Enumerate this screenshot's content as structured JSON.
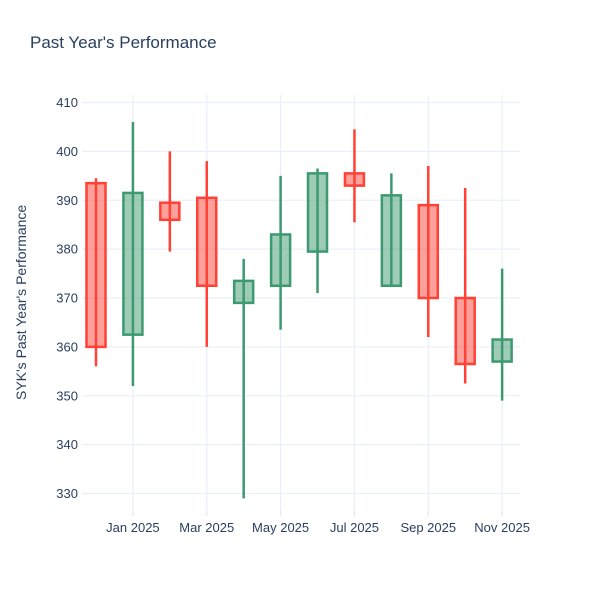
{
  "page": {
    "title": "Past Year's Performance"
  },
  "colors": {
    "background": "#ffffff",
    "text": "#2a3f5f",
    "grid": "#ebf0f8",
    "tick_mark": "#e3e9f3"
  },
  "chart_data": {
    "type": "candlestick",
    "title": "Past Year's Performance",
    "xlabel": "",
    "ylabel": "SYK's Past Year's Performance",
    "legend": false,
    "grid": true,
    "ylim": [
      325,
      413
    ],
    "y_ticks": [
      330,
      340,
      350,
      360,
      370,
      380,
      390,
      400,
      410
    ],
    "x_tick_labels": [
      "Jan 2025",
      "Mar 2025",
      "May 2025",
      "Jul 2025",
      "Sep 2025",
      "Nov 2025"
    ],
    "increasing": {
      "line_color": "#3d9970",
      "fill_color": "rgba(61,153,112,0.5)"
    },
    "decreasing": {
      "line_color": "#ff4136",
      "fill_color": "rgba(255,65,54,0.5)"
    },
    "candles": [
      {
        "month": "Dec 2024",
        "open": 393.5,
        "high": 394.5,
        "low": 356.0,
        "close": 360.0
      },
      {
        "month": "Jan 2025",
        "open": 362.5,
        "high": 406.0,
        "low": 352.0,
        "close": 391.5
      },
      {
        "month": "Feb 2025",
        "open": 389.5,
        "high": 400.0,
        "low": 379.5,
        "close": 386.0
      },
      {
        "month": "Mar 2025",
        "open": 390.5,
        "high": 398.0,
        "low": 360.0,
        "close": 372.5
      },
      {
        "month": "Apr 2025",
        "open": 369.0,
        "high": 378.0,
        "low": 329.0,
        "close": 373.5
      },
      {
        "month": "May 2025",
        "open": 372.5,
        "high": 395.0,
        "low": 363.5,
        "close": 383.0
      },
      {
        "month": "Jun 2025",
        "open": 379.5,
        "high": 396.5,
        "low": 371.0,
        "close": 395.5
      },
      {
        "month": "Jul 2025",
        "open": 395.5,
        "high": 404.5,
        "low": 385.5,
        "close": 393.0
      },
      {
        "month": "Aug 2025",
        "open": 372.5,
        "high": 395.5,
        "low": 372.5,
        "close": 391.0
      },
      {
        "month": "Sep 2025",
        "open": 389.0,
        "high": 397.0,
        "low": 362.0,
        "close": 370.0
      },
      {
        "month": "Oct 2025",
        "open": 370.0,
        "high": 392.5,
        "low": 352.5,
        "close": 356.5
      },
      {
        "month": "Nov 2025",
        "open": 357.0,
        "high": 376.0,
        "low": 349.0,
        "close": 361.5
      }
    ]
  }
}
